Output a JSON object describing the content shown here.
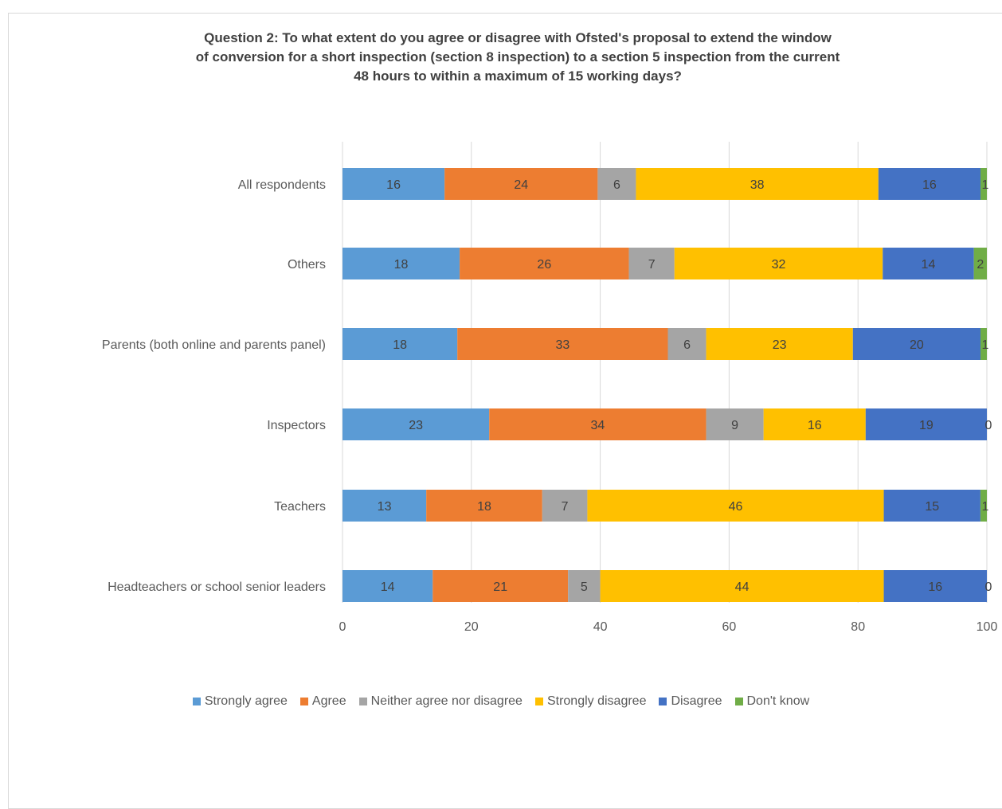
{
  "chart_data": {
    "type": "bar",
    "orientation": "horizontal",
    "stacked": true,
    "title_lines": [
      "Question 2: To what extent do you agree or disagree with Ofsted's proposal to extend the window",
      "of conversion for a short inspection (section 8 inspection) to a section 5 inspection from the current",
      "48 hours to within a maximum of 15 working days?"
    ],
    "categories": [
      "All respondents",
      "Others",
      "Parents (both online and parents panel)",
      "Inspectors",
      "Teachers",
      "Headteachers or school senior leaders"
    ],
    "series": [
      {
        "name": "Strongly agree",
        "color": "#5B9BD5",
        "values": [
          16,
          18,
          18,
          23,
          13,
          14
        ]
      },
      {
        "name": "Agree",
        "color": "#ED7D31",
        "values": [
          24,
          26,
          33,
          34,
          18,
          21
        ]
      },
      {
        "name": "Neither agree nor disagree",
        "color": "#A5A5A5",
        "values": [
          6,
          7,
          6,
          9,
          7,
          5
        ]
      },
      {
        "name": "Strongly disagree",
        "color": "#FFC000",
        "values": [
          38,
          32,
          23,
          16,
          46,
          44
        ]
      },
      {
        "name": "Disagree",
        "color": "#4472C4",
        "values": [
          16,
          14,
          20,
          19,
          15,
          16
        ]
      },
      {
        "name": "Don't know",
        "color": "#70AD47",
        "values": [
          1,
          2,
          1,
          0,
          1,
          0
        ]
      }
    ],
    "xlim": [
      0,
      100
    ],
    "xticks": [
      0,
      20,
      40,
      60,
      80,
      100
    ],
    "grid": true,
    "legend_position": "bottom"
  }
}
